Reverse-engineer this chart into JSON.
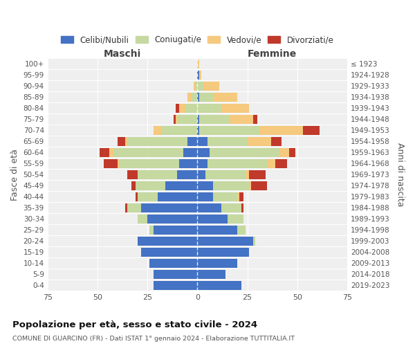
{
  "age_groups": [
    "0-4",
    "5-9",
    "10-14",
    "15-19",
    "20-24",
    "25-29",
    "30-34",
    "35-39",
    "40-44",
    "45-49",
    "50-54",
    "55-59",
    "60-64",
    "65-69",
    "70-74",
    "75-79",
    "80-84",
    "85-89",
    "90-94",
    "95-99",
    "100+"
  ],
  "birth_years": [
    "2019-2023",
    "2014-2018",
    "2009-2013",
    "2004-2008",
    "1999-2003",
    "1994-1998",
    "1989-1993",
    "1984-1988",
    "1979-1983",
    "1974-1978",
    "1969-1973",
    "1964-1968",
    "1959-1963",
    "1954-1958",
    "1949-1953",
    "1944-1948",
    "1939-1943",
    "1934-1938",
    "1929-1933",
    "1924-1928",
    "≤ 1923"
  ],
  "male": {
    "celibe": [
      22,
      22,
      24,
      28,
      30,
      22,
      25,
      28,
      20,
      16,
      10,
      9,
      7,
      5,
      0,
      0,
      0,
      0,
      0,
      0,
      0
    ],
    "coniugato": [
      0,
      0,
      0,
      0,
      0,
      2,
      5,
      7,
      10,
      15,
      20,
      30,
      35,
      30,
      18,
      10,
      6,
      3,
      1,
      0,
      0
    ],
    "vedovo": [
      0,
      0,
      0,
      0,
      0,
      0,
      0,
      0,
      0,
      0,
      0,
      1,
      2,
      1,
      4,
      1,
      3,
      2,
      1,
      0,
      0
    ],
    "divorziato": [
      0,
      0,
      0,
      0,
      0,
      0,
      0,
      1,
      1,
      2,
      5,
      7,
      5,
      4,
      0,
      1,
      2,
      0,
      0,
      0,
      0
    ]
  },
  "female": {
    "nubile": [
      22,
      14,
      20,
      26,
      28,
      20,
      15,
      12,
      8,
      8,
      4,
      5,
      6,
      5,
      1,
      1,
      0,
      1,
      0,
      1,
      0
    ],
    "coniugata": [
      0,
      0,
      0,
      0,
      1,
      4,
      8,
      10,
      12,
      18,
      20,
      30,
      35,
      20,
      30,
      15,
      12,
      7,
      3,
      0,
      0
    ],
    "vedova": [
      0,
      0,
      0,
      0,
      0,
      0,
      0,
      0,
      1,
      1,
      2,
      4,
      5,
      12,
      22,
      12,
      14,
      12,
      8,
      1,
      1
    ],
    "divorziata": [
      0,
      0,
      0,
      0,
      0,
      0,
      0,
      1,
      2,
      8,
      8,
      6,
      3,
      5,
      8,
      2,
      0,
      0,
      0,
      0,
      0
    ]
  },
  "colors": {
    "celibe": "#4472c4",
    "coniugato": "#c5d9a0",
    "vedovo": "#f5c97e",
    "divorziato": "#c0392b"
  },
  "xlim": 75,
  "title": "Popolazione per età, sesso e stato civile - 2024",
  "subtitle": "COMUNE DI GUARCINO (FR) - Dati ISTAT 1° gennaio 2024 - Elaborazione TUTTITALIA.IT",
  "ylabel_left": "Fasce di età",
  "ylabel_right": "Anni di nascita",
  "xlabel_male": "Maschi",
  "xlabel_female": "Femmine",
  "legend_labels": [
    "Celibi/Nubili",
    "Coniugati/e",
    "Vedovi/e",
    "Divorziati/e"
  ],
  "background_color": "#ffffff",
  "plot_bg": "#efefef"
}
